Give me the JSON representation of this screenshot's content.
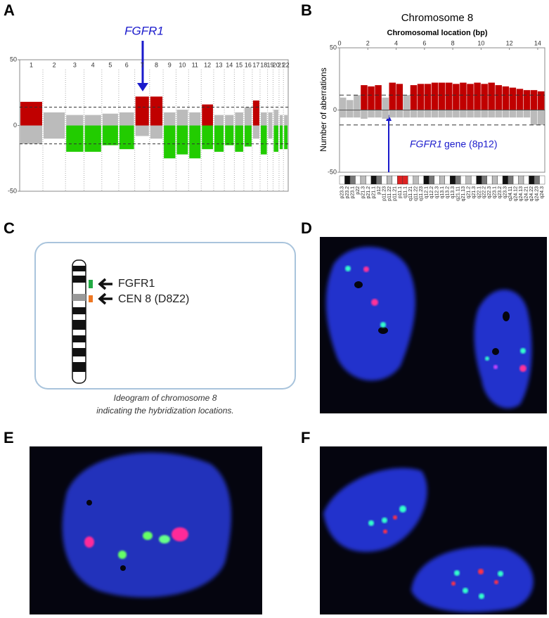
{
  "panel_labels": [
    "A",
    "B",
    "C",
    "D",
    "E",
    "F"
  ],
  "chart_data": [
    {
      "type": "bar",
      "annotation": "FGFR1",
      "categories": [
        "1",
        "2",
        "3",
        "4",
        "5",
        "6",
        "7",
        "8",
        "9",
        "10",
        "11",
        "12",
        "13",
        "14",
        "15",
        "16",
        "17",
        "18",
        "19",
        "20",
        "21",
        "22"
      ],
      "series": [
        {
          "color": "#c00000",
          "values": [
            18,
            10,
            8,
            8,
            9,
            10,
            22,
            22,
            10,
            12,
            10,
            16,
            8,
            8,
            10,
            14,
            19,
            10,
            10,
            12,
            8,
            8
          ]
        },
        {
          "color": "#22cc00",
          "values": [
            -14,
            -10,
            -20,
            -20,
            -15,
            -18,
            -8,
            -10,
            -25,
            -22,
            -25,
            -18,
            -20,
            -15,
            -20,
            -16,
            -10,
            -22,
            -10,
            -20,
            -18,
            -18
          ]
        }
      ],
      "neutral_color": "#bbbbbb",
      "threshold": 14,
      "ylim": [
        -50,
        50
      ],
      "yticks": [
        50,
        0,
        -50
      ]
    },
    {
      "type": "bar",
      "title": "Chromosome 8",
      "xlabel": "Chromosomal location (bp)",
      "ylabel": "Number of aberrations",
      "annotation": [
        "FGFR1",
        "gene (8p12)"
      ],
      "x": [
        0,
        0.5,
        1,
        1.5,
        2,
        2.5,
        3,
        3.5,
        4,
        4.5,
        5,
        5.5,
        6,
        6.5,
        7,
        7.5,
        8,
        8.5,
        9,
        9.5,
        10,
        10.5,
        11,
        11.5,
        12,
        12.5,
        13,
        13.5,
        14
      ],
      "series": [
        {
          "color": "#c00000",
          "values": [
            10,
            8,
            12,
            20,
            19,
            20,
            10,
            22,
            21,
            12,
            20,
            21,
            21,
            22,
            22,
            22,
            21,
            22,
            21,
            22,
            21,
            22,
            20,
            19,
            18,
            17,
            16,
            16,
            15
          ]
        },
        {
          "color": "#bbbbbb",
          "values": [
            -6,
            -6,
            -6,
            -7,
            -6,
            -6,
            -7,
            -6,
            -6,
            -6,
            -6,
            -6,
            -6,
            -6,
            -6,
            -6,
            -6,
            -6,
            -6,
            -6,
            -6,
            -6,
            -6,
            -6,
            -6,
            -6,
            -6,
            -12,
            -12
          ]
        }
      ],
      "neutral_color": "#bbbbbb",
      "threshold": 12,
      "xlim": [
        0,
        14.5
      ],
      "xticks": [
        0,
        2,
        4,
        6,
        8,
        10,
        12,
        14
      ],
      "ylim": [
        -50,
        50
      ],
      "yticks": [
        50,
        0,
        -50
      ],
      "bands": [
        "p23.3",
        "p23.2",
        "p23.1",
        "p22",
        "p21.3",
        "p21.2",
        "p21.1",
        "p12",
        "p11.23",
        "p11.22",
        "p11.21",
        "p11.1",
        "q11.1",
        "q11.21",
        "q11.22",
        "q11.23",
        "q12.1",
        "q12.2",
        "q12.3",
        "q13.1",
        "q13.2",
        "q13.3",
        "q21.11",
        "q21.13",
        "q21.2",
        "q21.3",
        "q22.1",
        "q22.2",
        "q22.3",
        "q23.1",
        "q23.2",
        "q23.3",
        "q24.11",
        "q24.12",
        "q24.13",
        "q24.21",
        "q24.22",
        "q24.23",
        "q24.3"
      ]
    }
  ],
  "ideogram": {
    "labels": [
      "FGFR1",
      "CEN 8 (D8Z2)"
    ],
    "caption": [
      "Ideogram of chromosome 8",
      "indicating the hybridization locations."
    ]
  }
}
